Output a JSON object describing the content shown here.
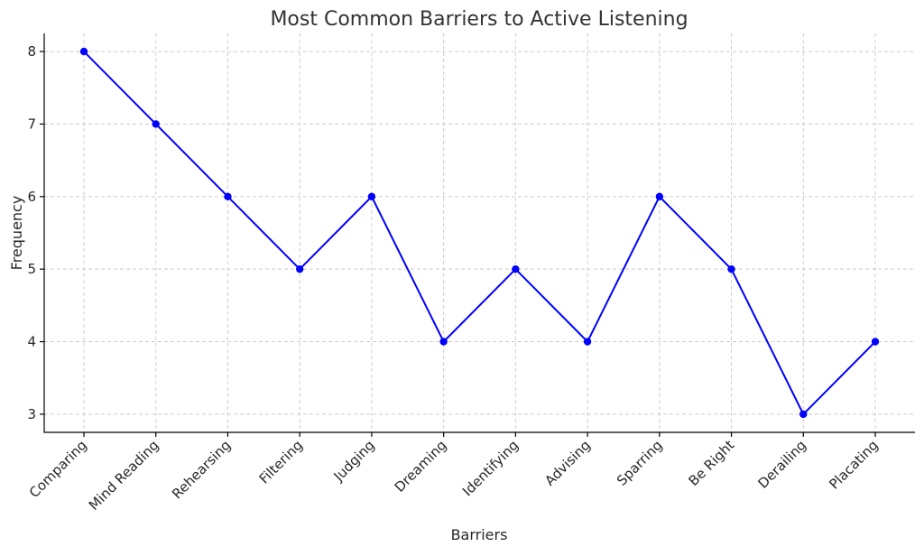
{
  "chart_data": {
    "type": "line",
    "title": "Most Common Barriers to Active Listening",
    "xlabel": "Barriers",
    "ylabel": "Frequency",
    "categories": [
      "Comparing",
      "Mind Reading",
      "Rehearsing",
      "Filtering",
      "Judging",
      "Dreaming",
      "Identifying",
      "Advising",
      "Sparring",
      "Be Right",
      "Derailing",
      "Placating"
    ],
    "series": [
      {
        "values": [
          8,
          7,
          6,
          5,
          6,
          4,
          5,
          4,
          6,
          5,
          3,
          4
        ]
      }
    ],
    "yticks": [
      3,
      4,
      5,
      6,
      7,
      8
    ],
    "ylim": [
      2.75,
      8.25
    ],
    "grid": true,
    "line_color": "#0000ff",
    "marker_color": "#0000ff",
    "marker": "circle"
  }
}
